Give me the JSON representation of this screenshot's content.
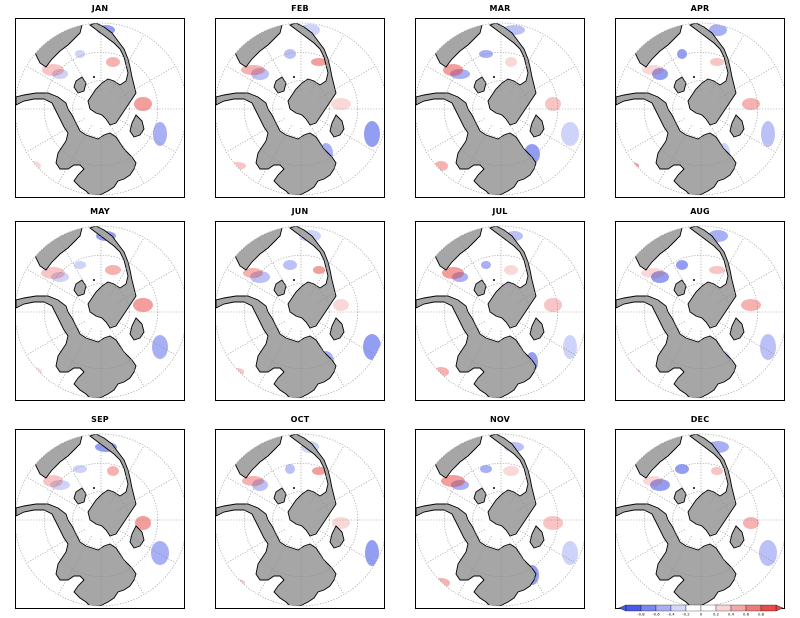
{
  "figure": {
    "panels": [
      {
        "id": "jan",
        "title": "JAN"
      },
      {
        "id": "feb",
        "title": "FEB"
      },
      {
        "id": "mar",
        "title": "MAR"
      },
      {
        "id": "apr",
        "title": "APR"
      },
      {
        "id": "may",
        "title": "MAY"
      },
      {
        "id": "jun",
        "title": "JUN"
      },
      {
        "id": "jul",
        "title": "JUL"
      },
      {
        "id": "aug",
        "title": "AUG"
      },
      {
        "id": "sep",
        "title": "SEP"
      },
      {
        "id": "oct",
        "title": "OCT"
      },
      {
        "id": "nov",
        "title": "NOV"
      },
      {
        "id": "dec",
        "title": "DEC"
      }
    ],
    "colors": {
      "land": "#a6a6a6",
      "coast": "#000000",
      "grid": "#8c8c8c",
      "positive": "#e83b3b",
      "negative": "#3b4ee8",
      "frame": "#000000"
    },
    "colorbar": {
      "ticks": [
        "-0.8",
        "-0.6",
        "-0.4",
        "-0.2",
        "0",
        "0.2",
        "0.4",
        "0.6",
        "0.8"
      ],
      "colors": [
        "#4a5ae8",
        "#7c87ec",
        "#a8b0f2",
        "#d4d8fa",
        "#ffffff",
        "#ffffff",
        "#fad4d4",
        "#f2a8a8",
        "#ec7c7c",
        "#e84a4a"
      ]
    }
  }
}
